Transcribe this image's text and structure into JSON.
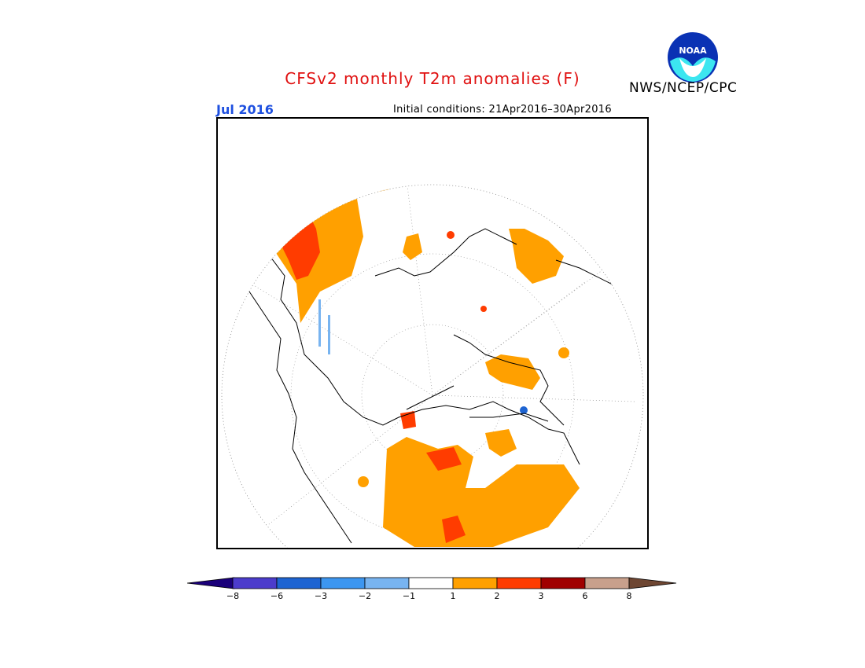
{
  "header": {
    "title": "CFSv2 monthly T2m anomalies (F)",
    "org": "NWS/NCEP/CPC",
    "logo_text": "NOAA",
    "month": "Jul 2016",
    "initial_conditions": "Initial conditions: 21Apr2016–30Apr2016"
  },
  "map": {
    "projection": "north-polar-stereographic",
    "variable": "2m temperature anomaly",
    "units": "F"
  },
  "legend": {
    "labels": [
      "−8",
      "−6",
      "−3",
      "−2",
      "−1",
      "1",
      "2",
      "3",
      "6",
      "8"
    ],
    "colors": [
      "#1a007a",
      "#4c3ccc",
      "#1e64d2",
      "#3c96f0",
      "#78b4f0",
      "#ffffff",
      "#ffa000",
      "#ff3c00",
      "#a00000",
      "#c8a08c",
      "#6e4632"
    ]
  },
  "colors": {
    "title": "#e01010",
    "month": "#1e50e0",
    "anomaly_1_2": "#ffa000",
    "anomaly_2_3": "#ff3c00",
    "anomaly_neg": "#78b4f0"
  }
}
